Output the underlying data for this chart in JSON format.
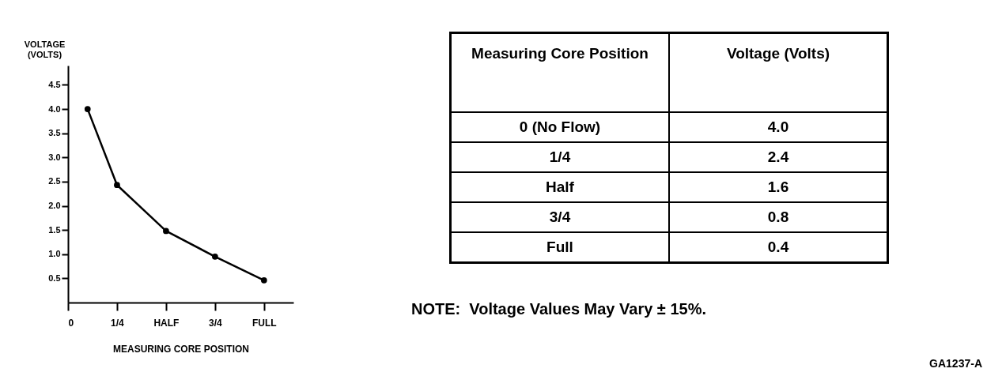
{
  "chart_data": [
    {
      "type": "line",
      "xlabel": "MEASURING CORE POSITION",
      "ylabel": "VOLTAGE (VOLTS)",
      "x": [
        0.1,
        0.25,
        0.5,
        0.75,
        1
      ],
      "series": [
        {
          "color": "#000000",
          "values": [
            4.0,
            2.43,
            1.48,
            0.95,
            0.46
          ]
        }
      ],
      "xlim": [
        0,
        1.15
      ],
      "xticks": [
        {
          "value": 0,
          "label": "0"
        },
        {
          "value": 0.25,
          "label": "1/4"
        },
        {
          "value": 0.5,
          "label": "HALF"
        },
        {
          "value": 0.75,
          "label": "3/4"
        },
        {
          "value": 1,
          "label": "FULL"
        }
      ],
      "ylim": [
        0,
        4.9
      ],
      "yticks": [
        0.5,
        {
          "value": 1,
          "label": "1.0"
        },
        1.5,
        {
          "value": 2,
          "label": "2.0"
        },
        2.5,
        {
          "value": 3,
          "label": "3.0"
        },
        3.5,
        {
          "value": 4,
          "label": "4.0"
        },
        4.5
      ],
      "marker": "circle"
    },
    {
      "type": "other",
      "xlabel": "Measuring Core Position",
      "ylabel": "Voltage (Volts)",
      "categories": [
        "0 (No Flow)",
        "1/4",
        "Half",
        "3/4",
        "Full"
      ],
      "values": [
        4.0,
        2.4,
        1.6,
        0.8,
        0.4
      ],
      "value_labels": [
        "4.0",
        "2.4",
        "1.6",
        "0.8",
        "0.4"
      ],
      "annotations": [
        "NOTE:  Voltage Values May Vary ± 15%.",
        "GA1237-A"
      ]
    }
  ]
}
